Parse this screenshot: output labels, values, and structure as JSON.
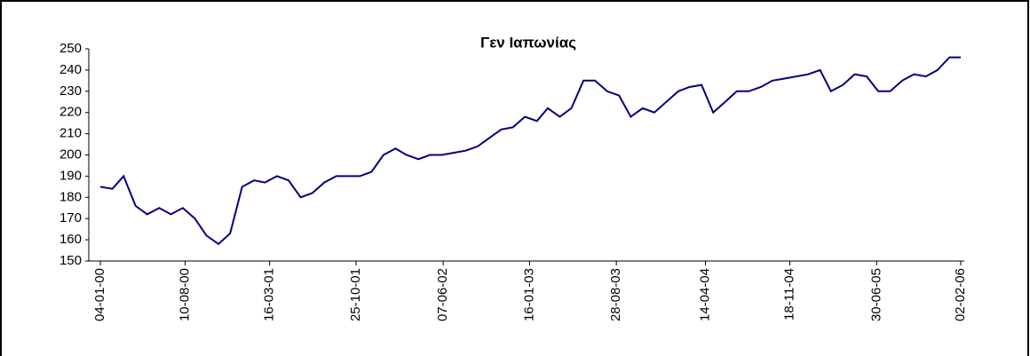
{
  "chart_data": {
    "type": "line",
    "title": "Γεν Ιαπωνίας",
    "x": [
      "04-01-00",
      "04-02-00",
      "04-03-00",
      "04-04-00",
      "04-05-00",
      "04-06-00",
      "04-07-00",
      "04-08-00",
      "04-09-00",
      "04-10-00",
      "04-11-00",
      "04-12-00",
      "04-01-01",
      "04-02-01",
      "04-03-01",
      "04-04-01",
      "04-05-01",
      "04-06-01",
      "04-07-01",
      "04-08-01",
      "04-09-01",
      "04-10-01",
      "04-11-01",
      "04-12-01",
      "04-01-02",
      "04-02-02",
      "04-03-02",
      "04-04-02",
      "04-05-02",
      "04-06-02",
      "04-07-02",
      "04-08-02",
      "04-09-02",
      "04-10-02",
      "04-11-02",
      "04-12-02",
      "04-01-03",
      "04-02-03",
      "04-03-03",
      "04-04-03",
      "04-05-03",
      "04-06-03",
      "04-07-03",
      "04-08-03",
      "04-09-03",
      "04-10-03",
      "04-11-03",
      "04-12-03",
      "04-01-04",
      "04-02-04",
      "04-03-04",
      "04-04-04",
      "04-05-04",
      "04-06-04",
      "04-07-04",
      "04-08-04",
      "04-09-04",
      "04-10-04",
      "04-11-04",
      "04-12-04",
      "04-01-05",
      "04-02-05",
      "04-03-05",
      "04-04-05",
      "04-05-05",
      "04-06-05",
      "04-07-05",
      "04-08-05",
      "04-09-05",
      "04-10-05",
      "04-11-05",
      "04-12-05",
      "04-01-06",
      "02-02-06"
    ],
    "series": [
      {
        "name": "Γεν Ιαπωνίας",
        "color": "#000080",
        "values": [
          185,
          184,
          190,
          176,
          172,
          175,
          172,
          175,
          170,
          162,
          158,
          163,
          185,
          188,
          187,
          190,
          188,
          180,
          182,
          187,
          190,
          190,
          190,
          192,
          200,
          203,
          200,
          198,
          200,
          200,
          201,
          202,
          204,
          208,
          212,
          213,
          218,
          216,
          222,
          218,
          222,
          235,
          235,
          230,
          228,
          218,
          222,
          220,
          225,
          230,
          232,
          233,
          220,
          225,
          230,
          230,
          232,
          235,
          236,
          237,
          238,
          240,
          230,
          233,
          238,
          237,
          230,
          230,
          235,
          238,
          237,
          240,
          246,
          246
        ]
      }
    ],
    "xlim": [
      "04-01-00",
      "02-02-06"
    ],
    "xticks": [
      "04-01-00",
      "10-08-00",
      "16-03-01",
      "25-10-01",
      "07-06-02",
      "16-01-03",
      "28-08-03",
      "14-04-04",
      "18-11-04",
      "30-06-05",
      "02-02-06"
    ],
    "ylim": [
      150,
      250
    ],
    "yticks": [
      150,
      160,
      170,
      180,
      190,
      200,
      210,
      220,
      230,
      240,
      250
    ]
  }
}
